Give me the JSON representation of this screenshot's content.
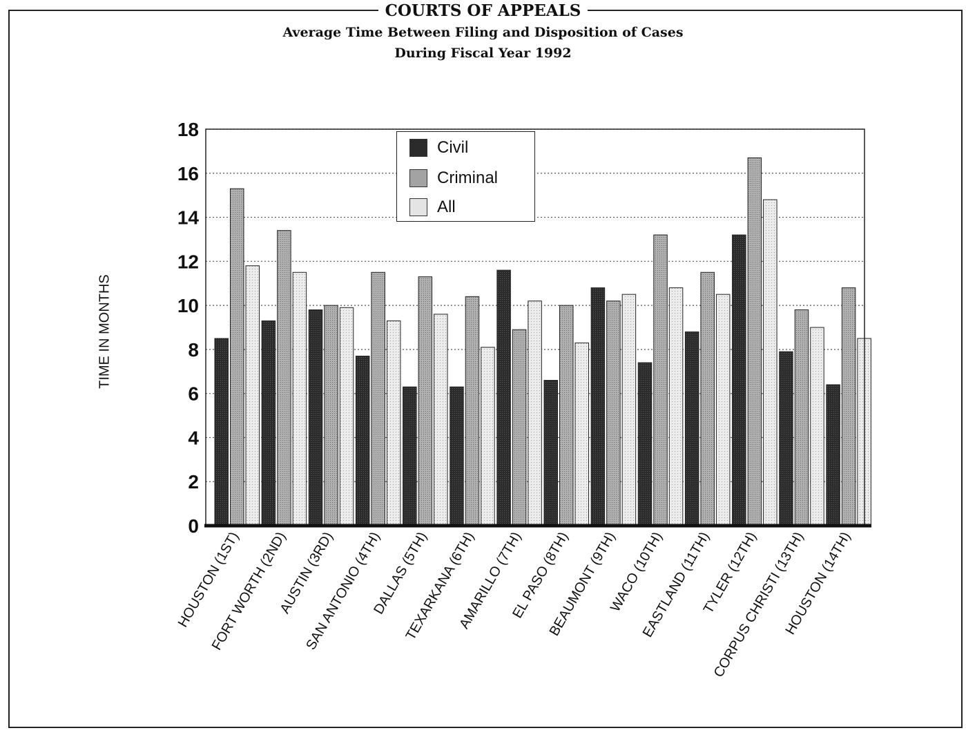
{
  "page": {
    "title": "COURTS OF APPEALS",
    "subtitle_line1": "Average Time Between Filing and Disposition of Cases",
    "subtitle_line2": "During Fiscal Year 1992"
  },
  "chart_data": {
    "type": "bar",
    "title": "COURTS OF APPEALS",
    "subtitle": "Average Time Between Filing and Disposition of Cases During Fiscal Year 1992",
    "xlabel": "",
    "ylabel": "TIME IN MONTHS",
    "ylim": [
      0,
      18
    ],
    "yticks": [
      0,
      2,
      4,
      6,
      8,
      10,
      12,
      14,
      16,
      18
    ],
    "grid": "horizontal dotted",
    "legend_position": "top-left",
    "categories": [
      "HOUSTON (1ST)",
      "FORT WORTH (2ND)",
      "AUSTIN (3RD)",
      "SAN ANTONIO (4TH)",
      "DALLAS (5TH)",
      "TEXARKANA (6TH)",
      "AMARILLO (7TH)",
      "EL PASO (8TH)",
      "BEAUMONT (9TH)",
      "WACO (10TH)",
      "EASTLAND (11TH)",
      "TYLER (12TH)",
      "CORPUS CHRISTI (13TH)",
      "HOUSTON (14TH)"
    ],
    "series": [
      {
        "name": "Civil",
        "color": "#2b2b2b",
        "values": [
          8.5,
          9.3,
          9.8,
          7.7,
          6.3,
          6.3,
          11.6,
          6.6,
          10.8,
          7.4,
          8.8,
          13.2,
          7.9,
          6.4
        ]
      },
      {
        "name": "Criminal",
        "color": "#a3a3a3",
        "values": [
          15.3,
          13.4,
          10.0,
          11.5,
          11.3,
          10.4,
          8.9,
          10.0,
          10.2,
          13.2,
          11.5,
          16.7,
          9.8,
          10.8
        ]
      },
      {
        "name": "All",
        "color": "#dcdcdc",
        "values": [
          11.8,
          11.5,
          9.9,
          9.3,
          9.6,
          8.1,
          10.2,
          8.3,
          10.5,
          10.8,
          10.5,
          14.8,
          9.0,
          8.5
        ]
      }
    ]
  }
}
